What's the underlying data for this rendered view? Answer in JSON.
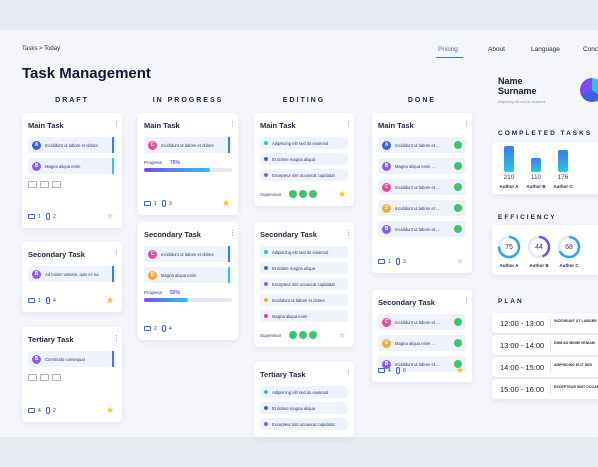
{
  "header": {
    "breadcrumb": "Tasks > Today",
    "title": "Task Management",
    "nav": [
      "Pricing",
      "About",
      "Language",
      "Conc"
    ]
  },
  "columns": [
    {
      "name": "DRAFT",
      "cards": [
        {
          "title": "Main Task",
          "items": [
            {
              "letter": "A",
              "text": "Incididunt ut labore et dolore"
            },
            {
              "letter": "B",
              "text": "Magna aliqua enim"
            }
          ],
          "comments": 1,
          "attachments": 2,
          "starred": false
        },
        {
          "title": "Secondary Task",
          "items": [
            {
              "letter": "B",
              "text": "Ad minim veniam, quis ex ea"
            }
          ],
          "comments": 1,
          "attachments": 4,
          "starred": true
        },
        {
          "title": "Tertiary Task",
          "items": [
            {
              "letter": "B",
              "text": "Commodo consequat"
            }
          ],
          "comments": 4,
          "attachments": 2,
          "starred": true
        }
      ]
    },
    {
      "name": "IN PROGRESS",
      "cards": [
        {
          "title": "Main Task",
          "items": [
            {
              "letter": "C",
              "text": "Incididunt ut labore et dolore"
            }
          ],
          "comments": 1,
          "attachments": 3,
          "starred": true,
          "progress_label": "Progress",
          "progress": {
            "value": 75,
            "label": "75%"
          }
        },
        {
          "title": "Secondary Task",
          "items": [
            {
              "letter": "C",
              "text": "Incididunt ut labore et dolore"
            },
            {
              "letter": "D",
              "text": "Magna aliqua enim"
            }
          ],
          "comments": 2,
          "attachments": 4,
          "progress_label": "Progress",
          "progress": {
            "value": 50,
            "label": "50%"
          }
        }
      ]
    },
    {
      "name": "EDITING",
      "cards": [
        {
          "title": "Main Task",
          "bullets": [
            "Adipiscing elit sed do eiusmod",
            "Et dolore magna aliqua",
            "Excepteur sint occaecat cupidatat"
          ],
          "supervisor": "Supervisor",
          "starred": true
        },
        {
          "title": "Secondary Task",
          "bullets": [
            "Adipiscing elit sed do eiusmod",
            "Et dolore magna aliqua",
            "Excepteur sint occaecat cupidatat",
            "Incididunt ut labore et dolore",
            "Magna aliqua enim"
          ],
          "supervisor": "Supervisor"
        },
        {
          "title": "Tertiary Task",
          "bullets": [
            "Adipiscing elit sed do eiusmod",
            "Et dolore magna aliqua",
            "Excepteur sint occaecat cupidatat"
          ]
        }
      ]
    },
    {
      "name": "DONE",
      "cards": [
        {
          "title": "Main Task",
          "items": [
            {
              "letter": "A",
              "text": "Incididunt ut labore et ..."
            },
            {
              "letter": "B",
              "text": "Magna aliqua enim ..."
            },
            {
              "letter": "C",
              "text": "Incididunt ut labore et ..."
            },
            {
              "letter": "D",
              "text": "Incididunt ut labore et ..."
            },
            {
              "letter": "B",
              "text": "Incididunt ut labore et ..."
            }
          ],
          "comments": 1,
          "attachments": 3,
          "starred": false
        },
        {
          "title": "Secondary Task",
          "items": [
            {
              "letter": "C",
              "text": "Incididunt ut labore et ..."
            },
            {
              "letter": "D",
              "text": "Magna aliqua enim ..."
            },
            {
              "letter": "B",
              "text": "Incididunt ut labore et ..."
            }
          ],
          "comments": 4,
          "attachments": 6,
          "starred": true
        }
      ]
    }
  ],
  "profile": {
    "name": "Name Surname",
    "subtitle": "Adipiscing elit sed do eiusmod"
  },
  "completed": {
    "title": "COMPLETED TASKS",
    "authors": [
      {
        "name": "Author A",
        "value": 210
      },
      {
        "name": "Author B",
        "value": 110
      },
      {
        "name": "Author C",
        "value": 176
      }
    ]
  },
  "efficiency": {
    "title": "EFFICIENCY",
    "authors": [
      {
        "name": "Author A",
        "value": 75
      },
      {
        "name": "Author B",
        "value": 44
      },
      {
        "name": "Author C",
        "value": 68
      }
    ]
  },
  "plan": {
    "title": "PLAN",
    "rows": [
      {
        "time": "12:00 - 13:00",
        "text": "INCIDIDUNT UT LABORE"
      },
      {
        "time": "13:00 - 14:00",
        "text": "DNM AD MINIM VENIAM"
      },
      {
        "time": "14:00 - 15:00",
        "text": "ADIPISCING ELIT SED"
      },
      {
        "time": "15:00 - 16:00",
        "text": "EXCEPTEUR SINT OCCAECAT"
      }
    ]
  }
}
